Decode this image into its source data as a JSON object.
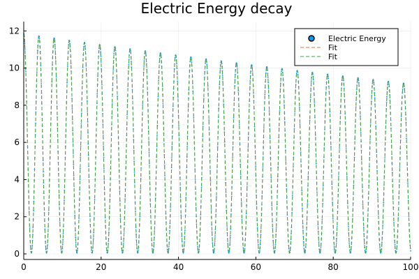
{
  "chart_data": {
    "type": "line",
    "title": "Electric Energy decay",
    "xlabel": "",
    "ylabel": "",
    "xlim": [
      0,
      100
    ],
    "ylim": [
      -0.3,
      12.5
    ],
    "x_ticks": [
      0,
      20,
      40,
      60,
      80,
      100
    ],
    "x_tick_labels": [
      "0",
      "20",
      "40",
      "60",
      "80",
      "100"
    ],
    "y_ticks": [
      0,
      2,
      4,
      6,
      8,
      10,
      12
    ],
    "y_tick_labels": [
      "0",
      "2",
      "4",
      "6",
      "8",
      "10",
      "12"
    ],
    "grid": true,
    "legend_position": "top-right",
    "series": [
      {
        "name": "Electric Energy",
        "kind": "scatter",
        "color": "#009AFA",
        "model": {
          "form": "A*cos^2(omega*t)*exp(-2*gamma*t) + C",
          "A": 11.8,
          "omega": 0.8,
          "gamma": 0.0013,
          "C": 0.05,
          "x_range": [
            0,
            100
          ]
        }
      },
      {
        "name": "Fit",
        "kind": "dashed-line",
        "color": "#E36F47",
        "model": {
          "form": "A*cos^2(omega*t)*exp(-2*gamma*t) + C",
          "A": 11.8,
          "omega": 0.8,
          "gamma": 0.0013,
          "C": 0.05,
          "x_range": [
            0,
            100
          ]
        }
      },
      {
        "name": "Fit",
        "kind": "dashed-line",
        "color": "#3EA44E",
        "model": {
          "form": "A*cos^2(omega*t)*exp(-2*gamma*t) + C",
          "A": 11.8,
          "omega": 0.8,
          "gamma": 0.0013,
          "C": 0.05,
          "x_range": [
            0,
            100
          ]
        }
      }
    ]
  }
}
